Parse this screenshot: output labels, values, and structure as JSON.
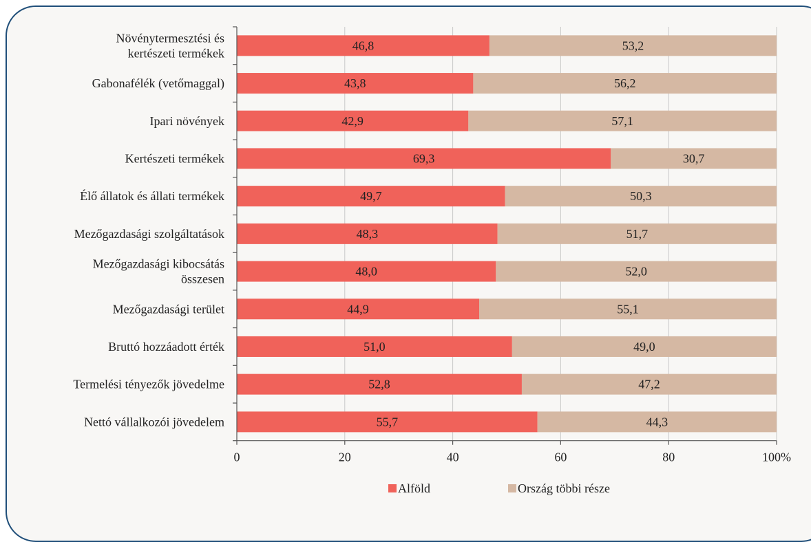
{
  "chart_data": {
    "type": "bar",
    "orientation": "horizontal",
    "stacked": true,
    "categories": [
      [
        "Növénytermesztési és",
        "kertészeti termékek"
      ],
      [
        "Gabonafélék (vetőmaggal)"
      ],
      [
        "Ipari növények"
      ],
      [
        "Kertészeti termékek"
      ],
      [
        "Élő állatok és állati termékek"
      ],
      [
        "Mezőgazdasági szolgáltatások"
      ],
      [
        "Mezőgazdasági kibocsátás",
        "összesen"
      ],
      [
        "Mezőgazdasági terület"
      ],
      [
        "Bruttó hozzáadott érték"
      ],
      [
        "Termelési tényezők jövedelme"
      ],
      [
        "Nettó vállalkozói jövedelem"
      ]
    ],
    "series": [
      {
        "name": "Alföld",
        "color": "#f0625a",
        "values": [
          46.8,
          43.8,
          42.9,
          69.3,
          49.7,
          48.3,
          48.0,
          44.9,
          51.0,
          52.8,
          55.7
        ],
        "labels": [
          "46,8",
          "43,8",
          "42,9",
          "69,3",
          "49,7",
          "48,3",
          "48,0",
          "44,9",
          "51,0",
          "52,8",
          "55,7"
        ]
      },
      {
        "name": "Ország többi része",
        "color": "#d5b8a3",
        "values": [
          53.2,
          56.2,
          57.1,
          30.7,
          50.3,
          51.7,
          52.0,
          55.1,
          49.0,
          47.2,
          44.3
        ],
        "labels": [
          "53,2",
          "56,2",
          "57,1",
          "30,7",
          "50,3",
          "51,7",
          "52,0",
          "55,1",
          "49,0",
          "47,2",
          "44,3"
        ]
      }
    ],
    "x_ticks": [
      "0",
      "20",
      "40",
      "60",
      "80",
      "100%"
    ],
    "xlim": [
      0,
      100
    ],
    "grid": "vertical",
    "legend_position": "bottom"
  }
}
